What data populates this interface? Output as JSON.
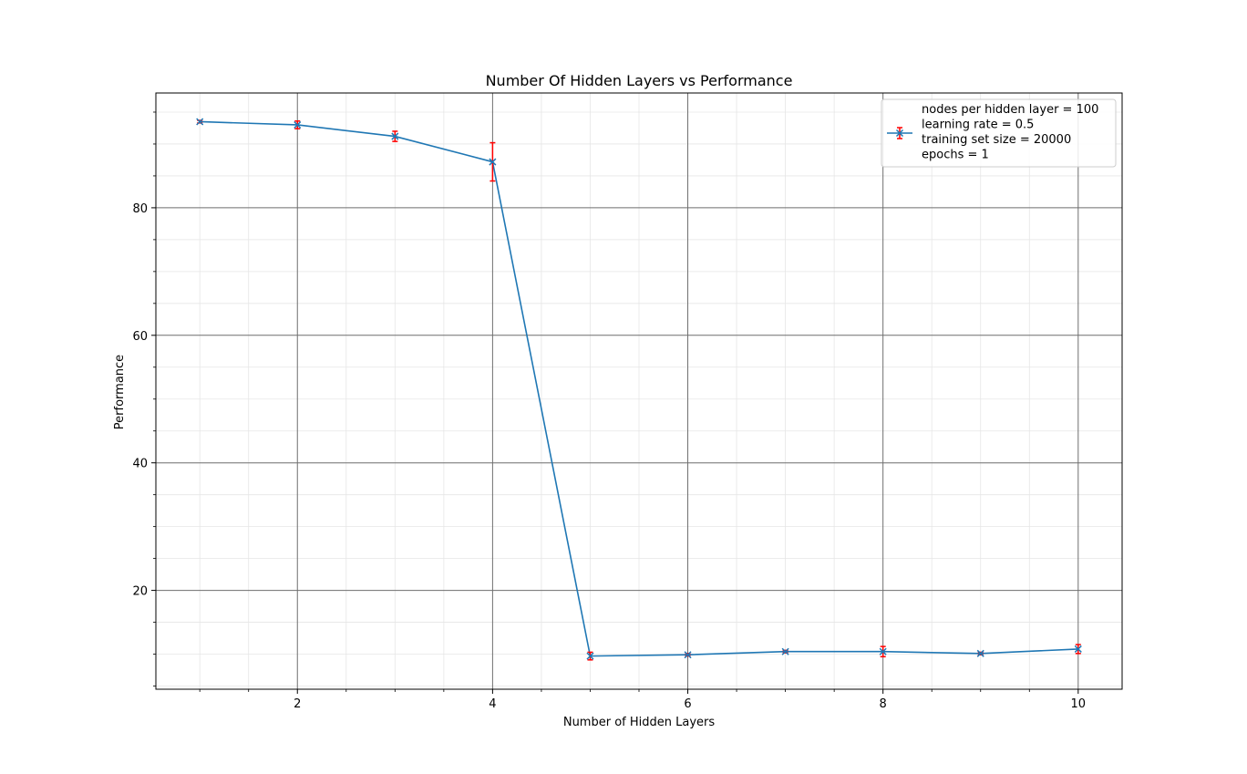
{
  "chart_data": {
    "type": "line",
    "title": "Number Of Hidden Layers vs Performance",
    "xlabel": "Number of Hidden Layers",
    "ylabel": "Performance",
    "xlim": [
      0.55,
      10.45
    ],
    "ylim": [
      4.5,
      98.0
    ],
    "x_ticks": [
      2,
      4,
      6,
      8,
      10
    ],
    "y_ticks": [
      20,
      40,
      60,
      80
    ],
    "x_minor_ticks": [
      1,
      1.5,
      2.5,
      3,
      3.5,
      4.5,
      5,
      5.5,
      6.5,
      7,
      7.5,
      8.5,
      9,
      9.5
    ],
    "y_minor_ticks": [
      5,
      10,
      15,
      25,
      30,
      35,
      45,
      50,
      55,
      65,
      70,
      75,
      85,
      90,
      95
    ],
    "grid": true,
    "legend_position": "top-right",
    "series": [
      {
        "name": "nodes per hidden layer = 100\nlearning rate = 0.5\ntraining set size = 20000\nepochs = 1",
        "color": "#1f77b4",
        "errorbar_color": "#ff0000",
        "marker": "x",
        "x": [
          1,
          2,
          3,
          4,
          5,
          6,
          7,
          8,
          9,
          10
        ],
        "y": [
          93.5,
          93.0,
          91.2,
          87.2,
          9.7,
          9.9,
          10.4,
          10.4,
          10.1,
          10.8
        ],
        "yerr": [
          0.2,
          0.6,
          0.8,
          3.0,
          0.6,
          0.2,
          0.2,
          0.8,
          0.2,
          0.7
        ]
      }
    ]
  }
}
